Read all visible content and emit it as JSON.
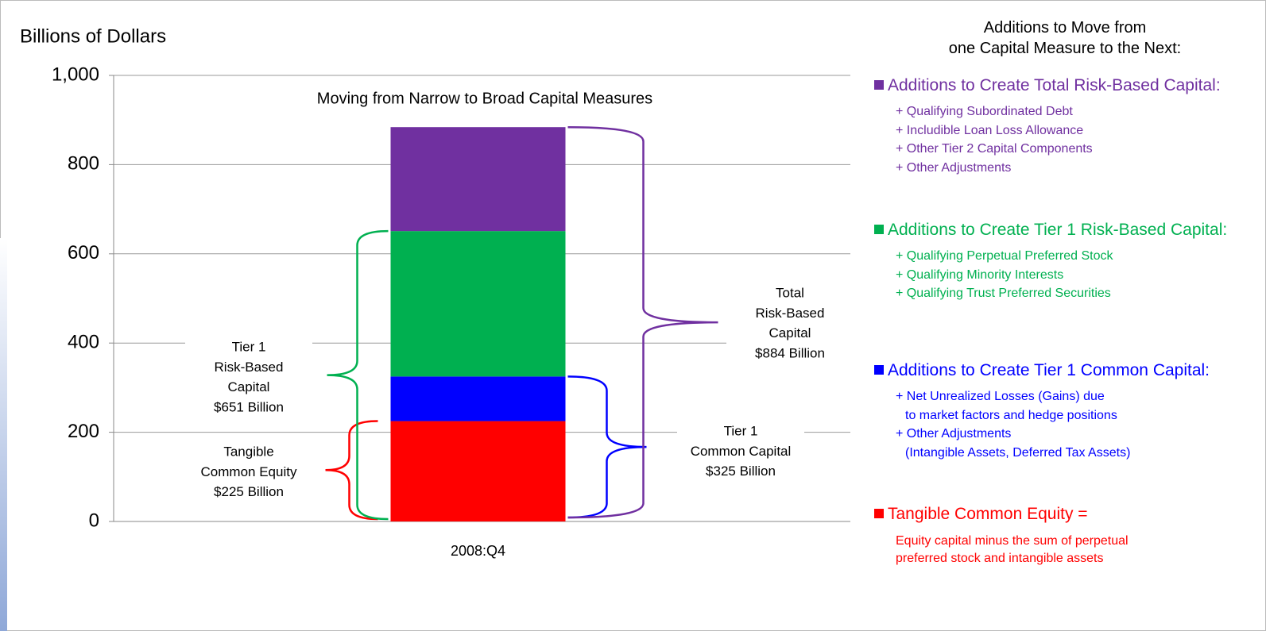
{
  "chart_data": {
    "type": "stacked_bar",
    "title": "Moving from Narrow to Broad Capital Measures",
    "y_axis_label": "Billions of Dollars",
    "categories": [
      "2008:Q4"
    ],
    "ylim": [
      0,
      1000
    ],
    "yticks": [
      0,
      200,
      400,
      600,
      800,
      {
        "value": 1000,
        "label": "1,000"
      }
    ],
    "grid": true,
    "legend_title": [
      "Additions to Move from",
      "one Capital Measure to the Next:"
    ],
    "series": [
      {
        "name": "Tangible Common Equity =",
        "color": "#ff0000",
        "values": [
          225
        ],
        "description": [
          [
            "Equity capital minus the sum of perpetual"
          ],
          [
            "preferred stock and intangible assets"
          ]
        ]
      },
      {
        "name": "Additions to Create Tier 1 Common Capital:",
        "color": "#0000ff",
        "values": [
          100
        ],
        "description": [
          [
            "+ Net Unrealized Losses (Gains) due",
            "to market factors and hedge positions"
          ],
          [
            "+ Other Adjustments",
            "(Intangible Assets, Deferred Tax Assets)"
          ]
        ]
      },
      {
        "name": "Additions to Create Tier 1 Risk-Based Capital:",
        "color": "#00b050",
        "values": [
          326
        ],
        "description": [
          [
            "+ Qualifying Perpetual Preferred Stock"
          ],
          [
            "+ Qualifying Minority Interests"
          ],
          [
            "+ Qualifying Trust Preferred Securities"
          ]
        ]
      },
      {
        "name": "Additions to Create Total Risk-Based Capital:",
        "color": "#7030a0",
        "values": [
          233
        ],
        "description": [
          [
            "+ Qualifying Subordinated Debt"
          ],
          [
            "+ Includible Loan Loss Allowance"
          ],
          [
            "+ Other Tier 2 Capital Components"
          ],
          [
            "+ Other Adjustments"
          ]
        ]
      }
    ],
    "annotations": [
      {
        "lines": [
          "Tangible",
          "Common Equity",
          "$225 Billion"
        ]
      },
      {
        "lines": [
          "Tier 1",
          "Common Capital",
          "$325 Billion"
        ]
      },
      {
        "lines": [
          "Tier 1",
          "Risk-Based",
          "Capital",
          "$651 Billion"
        ]
      },
      {
        "lines": [
          "Total",
          "Risk-Based",
          "Capital",
          "$884 Billion"
        ]
      }
    ]
  }
}
